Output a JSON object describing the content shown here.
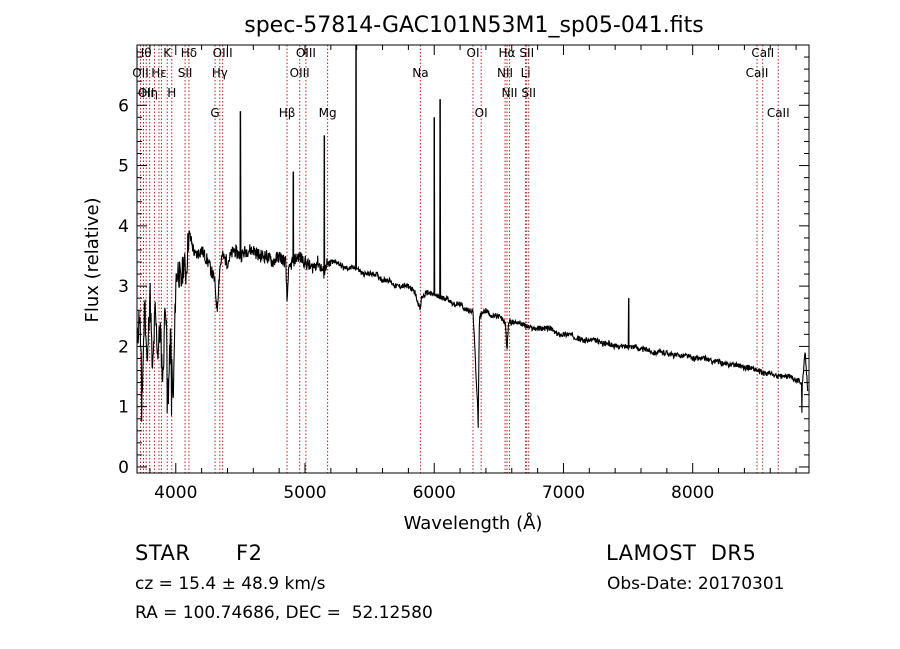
{
  "chart_data": {
    "type": "line",
    "title": "spec-57814-GAC101N53M1_sp05-041.fits",
    "xlabel": "Wavelength (Å)",
    "ylabel": "Flux (relative)",
    "xlim": [
      3700,
      8900
    ],
    "ylim": [
      -0.1,
      7.0
    ],
    "x_ticks": [
      4000,
      5000,
      6000,
      7000,
      8000
    ],
    "x_tick_labels": [
      "4000",
      "5000",
      "6000",
      "7000",
      "8000"
    ],
    "y_ticks": [
      0,
      1,
      2,
      3,
      4,
      5,
      6
    ],
    "y_tick_labels": [
      "0",
      "1",
      "2",
      "3",
      "4",
      "5",
      "6"
    ],
    "grid": false,
    "line_color": "#000000",
    "marker_color": "#b22222",
    "series": [
      {
        "x": [
          3700,
          3720,
          3740,
          3760,
          3780,
          3800,
          3820,
          3840,
          3860,
          3880,
          3900,
          3920,
          3940,
          3960,
          3980,
          4000,
          4020,
          4040,
          4060,
          4080,
          4100,
          4150,
          4200,
          4250,
          4300,
          4320,
          4340,
          4360,
          4400,
          4450,
          4500,
          4550,
          4600,
          4650,
          4700,
          4750,
          4800,
          4850,
          4862,
          4870,
          4900,
          4950,
          5000,
          5050,
          5100,
          5150,
          5167,
          5183,
          5200,
          5250,
          5300,
          5350,
          5400,
          5450,
          5500,
          5550,
          5600,
          5650,
          5700,
          5750,
          5800,
          5850,
          5893,
          5900,
          5950,
          6000,
          6050,
          6100,
          6150,
          6200,
          6250,
          6300,
          6340,
          6350,
          6400,
          6450,
          6500,
          6550,
          6563,
          6575,
          6600,
          6650,
          6700,
          6750,
          6800,
          6850,
          6900,
          6950,
          7000,
          7050,
          7100,
          7150,
          7200,
          7250,
          7300,
          7350,
          7400,
          7450,
          7500,
          7550,
          7600,
          7650,
          7700,
          7750,
          7800,
          7850,
          7900,
          7950,
          8000,
          8050,
          8100,
          8150,
          8200,
          8250,
          8300,
          8350,
          8400,
          8450,
          8500,
          8550,
          8600,
          8650,
          8700,
          8750,
          8800,
          8850,
          8870,
          8890
        ],
        "y": [
          2.0,
          2.6,
          1.2,
          2.8,
          1.6,
          3.0,
          1.5,
          2.6,
          1.9,
          2.3,
          1.4,
          2.9,
          1.1,
          2.2,
          1.0,
          3.1,
          3.3,
          3.0,
          3.4,
          3.2,
          3.9,
          3.5,
          3.6,
          3.4,
          3.1,
          2.6,
          3.3,
          3.5,
          3.4,
          3.6,
          3.5,
          3.6,
          3.6,
          3.5,
          3.5,
          3.4,
          3.5,
          3.4,
          2.7,
          3.2,
          3.4,
          3.5,
          3.4,
          3.3,
          3.4,
          3.2,
          3.4,
          3.3,
          3.4,
          3.4,
          3.3,
          3.3,
          3.3,
          3.2,
          3.2,
          3.2,
          3.1,
          3.1,
          3.0,
          3.0,
          3.0,
          2.9,
          2.6,
          2.8,
          2.9,
          2.85,
          2.8,
          2.8,
          2.7,
          2.7,
          2.6,
          2.6,
          0.8,
          2.5,
          2.6,
          2.5,
          2.5,
          2.4,
          1.9,
          2.4,
          2.4,
          2.4,
          2.35,
          2.3,
          2.3,
          2.3,
          2.3,
          2.2,
          2.2,
          2.2,
          2.15,
          2.1,
          2.1,
          2.1,
          2.05,
          2.05,
          2.0,
          2.0,
          2.0,
          2.0,
          1.95,
          1.95,
          1.9,
          1.9,
          1.9,
          1.85,
          1.85,
          1.85,
          1.8,
          1.8,
          1.8,
          1.75,
          1.75,
          1.7,
          1.7,
          1.7,
          1.65,
          1.65,
          1.6,
          1.55,
          1.55,
          1.5,
          1.5,
          1.5,
          1.45,
          1.4,
          1.9,
          1.3
        ]
      }
    ],
    "spikes": [
      {
        "x": 4500,
        "y": 5.9
      },
      {
        "x": 4910,
        "y": 4.9
      },
      {
        "x": 5150,
        "y": 5.5
      },
      {
        "x": 5395,
        "y": 7.0
      },
      {
        "x": 6000,
        "y": 5.8
      },
      {
        "x": 6045,
        "y": 6.1
      },
      {
        "x": 7505,
        "y": 2.8
      }
    ],
    "absorption": [
      {
        "x": 3735,
        "y": 0.75
      },
      {
        "x": 3935,
        "y": 0.9
      },
      {
        "x": 3968,
        "y": 0.85
      },
      {
        "x": 6340,
        "y": 0.65
      },
      {
        "x": 8846,
        "y": 0.9
      }
    ],
    "line_markers": [
      {
        "x": 3727,
        "label": "OII",
        "row": 2
      },
      {
        "x": 3750,
        "label": "Hθ",
        "row": 1
      },
      {
        "x": 3771,
        "label": "OII",
        "row": 3
      },
      {
        "x": 3798,
        "label": "Hη",
        "row": 3
      },
      {
        "x": 3835,
        "label": "",
        "row": 0
      },
      {
        "x": 3870,
        "label": "Hε",
        "row": 2
      },
      {
        "x": 3889,
        "label": "",
        "row": 0
      },
      {
        "x": 3934,
        "label": "K",
        "row": 1
      },
      {
        "x": 3969,
        "label": "H",
        "row": 3
      },
      {
        "x": 4072,
        "label": "SII",
        "row": 2
      },
      {
        "x": 4102,
        "label": "Hδ",
        "row": 1
      },
      {
        "x": 4304,
        "label": "G",
        "row": 4
      },
      {
        "x": 4341,
        "label": "Hγ",
        "row": 2
      },
      {
        "x": 4363,
        "label": "OIII",
        "row": 1
      },
      {
        "x": 4861,
        "label": "Hβ",
        "row": 4
      },
      {
        "x": 4959,
        "label": "OIII",
        "row": 2
      },
      {
        "x": 5007,
        "label": "OIII",
        "row": 1
      },
      {
        "x": 5175,
        "label": "Mg",
        "row": 4
      },
      {
        "x": 5893,
        "label": "Na",
        "row": 2
      },
      {
        "x": 6300,
        "label": "OI",
        "row": 1
      },
      {
        "x": 6363,
        "label": "OI",
        "row": 4
      },
      {
        "x": 6548,
        "label": "NII",
        "row": 2
      },
      {
        "x": 6563,
        "label": "Hα",
        "row": 1
      },
      {
        "x": 6583,
        "label": "NII",
        "row": 3
      },
      {
        "x": 6707,
        "label": "Li",
        "row": 2
      },
      {
        "x": 6716,
        "label": "SII",
        "row": 1
      },
      {
        "x": 6731,
        "label": "SII",
        "row": 3
      },
      {
        "x": 8498,
        "label": "CaII",
        "row": 2
      },
      {
        "x": 8542,
        "label": "CaII",
        "row": 1
      },
      {
        "x": 8662,
        "label": "CaII",
        "row": 4
      }
    ]
  },
  "info": {
    "object_class": "STAR",
    "subclass": "F2",
    "survey": "LAMOST  DR5",
    "cz": "cz = 15.4 ± 48.9 km/s",
    "obs_date": "Obs-Date: 20170301",
    "coords": "RA = 100.74686, DEC =  52.12580"
  }
}
